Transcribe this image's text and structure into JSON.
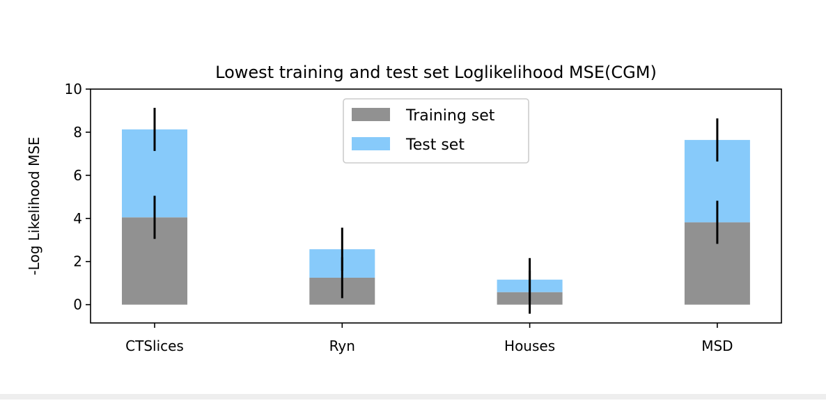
{
  "chart_data": {
    "type": "bar",
    "title": "Lowest training and test set Loglikelihood MSE(CGM)",
    "xlabel": "",
    "ylabel": "-Log Likelihood MSE",
    "categories": [
      "CTSlices",
      "Ryn",
      "Houses",
      "MSD"
    ],
    "ylim": [
      -0.85,
      10
    ],
    "yticks": [
      0,
      2,
      4,
      6,
      8,
      10
    ],
    "stacked": true,
    "grid": false,
    "legend_position": "top-center",
    "series": [
      {
        "name": "Training set",
        "color": "#919191",
        "values": [
          4.05,
          1.25,
          0.58,
          3.82
        ],
        "error": [
          1.0,
          0.95,
          1.0,
          1.0
        ]
      },
      {
        "name": "Test set",
        "color": "#87cafa",
        "values": [
          4.08,
          1.32,
          0.58,
          3.82
        ],
        "error": [
          1.0,
          1.0,
          1.0,
          1.0
        ]
      }
    ]
  }
}
